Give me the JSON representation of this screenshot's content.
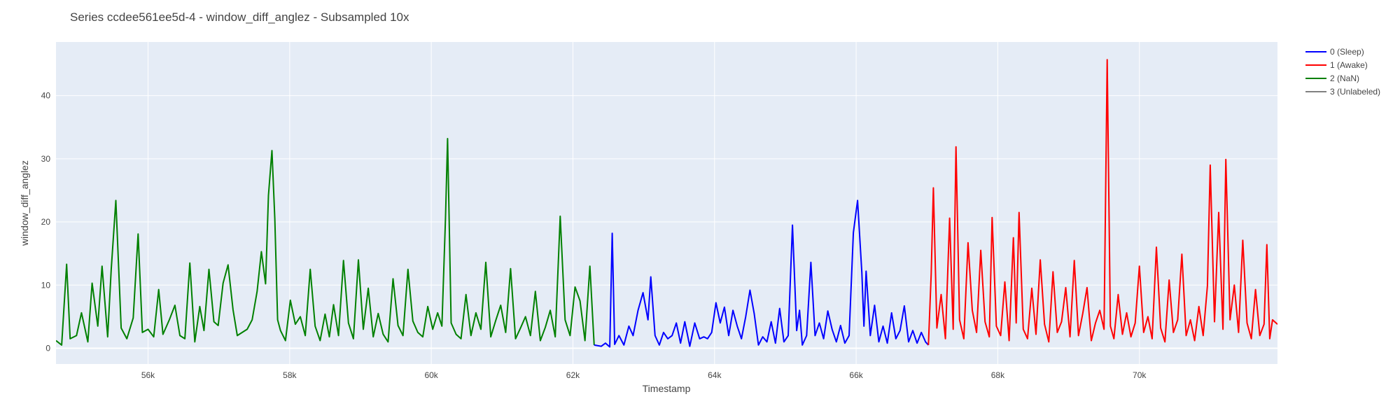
{
  "chart_data": {
    "type": "line",
    "title": "Series ccdee561ee5d-4 - window_diff_anglez - Subsampled 10x",
    "xlabel": "Timestamp",
    "ylabel": "window_diff_anglez",
    "xlim": [
      54700,
      71950
    ],
    "ylim": [
      -2.5,
      48.5
    ],
    "x_ticks": [
      56000,
      58000,
      60000,
      62000,
      64000,
      66000,
      68000,
      70000
    ],
    "x_tick_labels": [
      "56k",
      "58k",
      "60k",
      "62k",
      "64k",
      "66k",
      "68k",
      "70k"
    ],
    "y_ticks": [
      0,
      10,
      20,
      30,
      40
    ],
    "y_tick_labels": [
      "0",
      "10",
      "20",
      "30",
      "40"
    ],
    "grid": true,
    "legend_position": "right",
    "legend": [
      {
        "label": "0 (Sleep)",
        "color": "#0000ff"
      },
      {
        "label": "1 (Awake)",
        "color": "#ff0000"
      },
      {
        "label": "2 (NaN)",
        "color": "#008000"
      },
      {
        "label": "3 (Unlabeled)",
        "color": "#808080"
      }
    ],
    "series": [
      {
        "name": "2 (NaN)",
        "color": "#008000",
        "x": [
          54700,
          54780,
          54850,
          54900,
          54990,
          55060,
          55150,
          55210,
          55290,
          55350,
          55430,
          55480,
          55545,
          55620,
          55700,
          55790,
          55860,
          55920,
          56000,
          56080,
          56150,
          56210,
          56300,
          56380,
          56450,
          56520,
          56590,
          56660,
          56730,
          56790,
          56860,
          56930,
          56990,
          57060,
          57130,
          57200,
          57260,
          57330,
          57400,
          57470,
          57540,
          57600,
          57660,
          57700,
          57750,
          57790,
          57830,
          57870,
          57940,
          58010,
          58080,
          58150,
          58220,
          58290,
          58360,
          58430,
          58500,
          58560,
          58620,
          58690,
          58760,
          58830,
          58900,
          58970,
          59040,
          59110,
          59180,
          59250,
          59320,
          59390,
          59460,
          59530,
          59600,
          59670,
          59740,
          59810,
          59880,
          59950,
          60020,
          60090,
          60150,
          60200,
          60230,
          60280,
          60350,
          60420,
          60490,
          60560,
          60630,
          60700,
          60770,
          60840,
          60910,
          60980,
          61050,
          61120,
          61190,
          61260,
          61330,
          61400,
          61470,
          61540,
          61610,
          61680,
          61750,
          61820,
          61890,
          61960,
          62030,
          62100,
          62170,
          62240,
          62300
        ],
        "y": [
          1.2,
          0.5,
          13.3,
          1.5,
          2.0,
          5.6,
          1.0,
          10.3,
          3.5,
          13.0,
          1.8,
          12.5,
          23.4,
          3.2,
          1.5,
          4.8,
          18.1,
          2.5,
          3.0,
          1.8,
          9.3,
          2.2,
          4.5,
          6.8,
          2.0,
          1.5,
          13.5,
          1.0,
          6.6,
          2.8,
          12.5,
          4.2,
          3.6,
          10.3,
          13.2,
          6.1,
          2.0,
          2.5,
          3.0,
          4.5,
          9.0,
          15.3,
          10.2,
          24.2,
          31.3,
          20.5,
          4.5,
          2.8,
          1.2,
          7.6,
          3.8,
          5.0,
          2.0,
          12.5,
          3.5,
          1.2,
          5.4,
          1.8,
          6.9,
          2.0,
          13.9,
          4.0,
          1.5,
          14.0,
          3.0,
          9.5,
          1.8,
          5.5,
          2.2,
          1.0,
          11.0,
          3.6,
          2.0,
          12.5,
          4.3,
          2.5,
          1.8,
          6.6,
          3.0,
          5.6,
          3.5,
          20.5,
          33.2,
          4.0,
          2.2,
          1.5,
          8.5,
          2.0,
          5.6,
          3.0,
          13.6,
          1.8,
          4.4,
          6.8,
          2.5,
          12.6,
          1.5,
          3.2,
          5.0,
          2.0,
          9.0,
          1.2,
          3.3,
          6.0,
          1.8,
          20.9,
          4.5,
          2.0,
          9.7,
          7.5,
          1.2,
          13.0,
          0.5
        ]
      },
      {
        "name": "0 (Sleep)",
        "color": "#0000ff",
        "x": [
          62300,
          62400,
          62460,
          62520,
          62555,
          62590,
          62650,
          62720,
          62790,
          62850,
          62920,
          62990,
          63060,
          63100,
          63160,
          63220,
          63280,
          63340,
          63400,
          63460,
          63520,
          63580,
          63650,
          63720,
          63790,
          63850,
          63900,
          63960,
          64020,
          64080,
          64140,
          64200,
          64260,
          64320,
          64380,
          64440,
          64500,
          64560,
          64620,
          64680,
          64740,
          64800,
          64860,
          64920,
          64980,
          65040,
          65100,
          65160,
          65200,
          65240,
          65300,
          65360,
          65420,
          65480,
          65540,
          65600,
          65660,
          65720,
          65780,
          65840,
          65900,
          65960,
          66020,
          66080,
          66110,
          66140,
          66200,
          66260,
          66320,
          66380,
          66440,
          66500,
          66560,
          66620,
          66680,
          66740,
          66800,
          66860,
          66920,
          66980,
          67020
        ],
        "y": [
          0.5,
          0.3,
          0.8,
          0.2,
          18.2,
          0.6,
          2.0,
          0.5,
          3.5,
          2.0,
          6.0,
          8.8,
          4.5,
          11.3,
          2.0,
          0.5,
          2.5,
          1.5,
          2.0,
          4.0,
          0.8,
          4.2,
          0.3,
          4.0,
          1.5,
          1.8,
          1.5,
          2.5,
          7.2,
          4.0,
          6.5,
          2.0,
          6.0,
          3.5,
          1.5,
          5.0,
          9.2,
          5.5,
          0.5,
          1.8,
          1.0,
          4.2,
          0.8,
          6.3,
          1.0,
          2.0,
          19.5,
          2.8,
          6.0,
          0.5,
          2.0,
          13.6,
          2.0,
          4.0,
          1.5,
          5.9,
          3.0,
          1.0,
          3.6,
          0.8,
          2.0,
          18.3,
          23.4,
          12.0,
          3.5,
          12.2,
          2.0,
          6.8,
          1.0,
          3.5,
          0.8,
          5.6,
          1.5,
          2.8,
          6.7,
          1.0,
          2.8,
          0.8,
          2.5,
          1.0,
          0.5
        ]
      },
      {
        "name": "1 (Awake)",
        "color": "#ff0000",
        "x": [
          67020,
          67060,
          67090,
          67140,
          67200,
          67260,
          67320,
          67370,
          67410,
          67460,
          67520,
          67580,
          67640,
          67700,
          67760,
          67820,
          67880,
          67920,
          67980,
          68040,
          68100,
          68160,
          68220,
          68260,
          68300,
          68360,
          68420,
          68480,
          68540,
          68600,
          68660,
          68720,
          68780,
          68840,
          68900,
          68960,
          69020,
          69080,
          69140,
          69200,
          69260,
          69320,
          69380,
          69440,
          69500,
          69545,
          69590,
          69640,
          69700,
          69760,
          69820,
          69880,
          69940,
          70000,
          70060,
          70120,
          70180,
          70240,
          70300,
          70360,
          70420,
          70480,
          70540,
          70600,
          70660,
          70720,
          70780,
          70840,
          70900,
          70960,
          71000,
          71060,
          71120,
          71180,
          71220,
          71280,
          71340,
          71400,
          71460,
          71520,
          71580,
          71640,
          71700,
          71760,
          71800,
          71840,
          71880,
          71950
        ],
        "y": [
          0.5,
          11.8,
          25.4,
          3.2,
          8.5,
          1.5,
          20.6,
          3.0,
          31.9,
          4.5,
          1.5,
          16.7,
          6.0,
          2.5,
          15.5,
          4.2,
          1.8,
          20.7,
          3.5,
          2.0,
          10.5,
          1.2,
          17.5,
          4.0,
          21.5,
          3.0,
          1.5,
          9.5,
          2.2,
          14.0,
          3.8,
          1.0,
          12.1,
          2.5,
          4.2,
          9.6,
          1.8,
          13.9,
          2.0,
          5.5,
          9.6,
          1.2,
          4.0,
          6.0,
          3.0,
          45.7,
          3.5,
          1.5,
          8.5,
          2.2,
          5.6,
          1.8,
          4.0,
          13.0,
          2.5,
          5.0,
          1.5,
          16.0,
          3.2,
          1.0,
          10.8,
          2.5,
          4.5,
          14.9,
          2.0,
          4.5,
          1.2,
          6.6,
          2.0,
          9.9,
          29.0,
          4.2,
          21.5,
          3.0,
          29.9,
          4.5,
          10.0,
          2.5,
          17.1,
          4.0,
          1.5,
          9.3,
          2.0,
          3.8,
          16.4,
          1.5,
          4.5,
          3.8
        ]
      }
    ]
  }
}
